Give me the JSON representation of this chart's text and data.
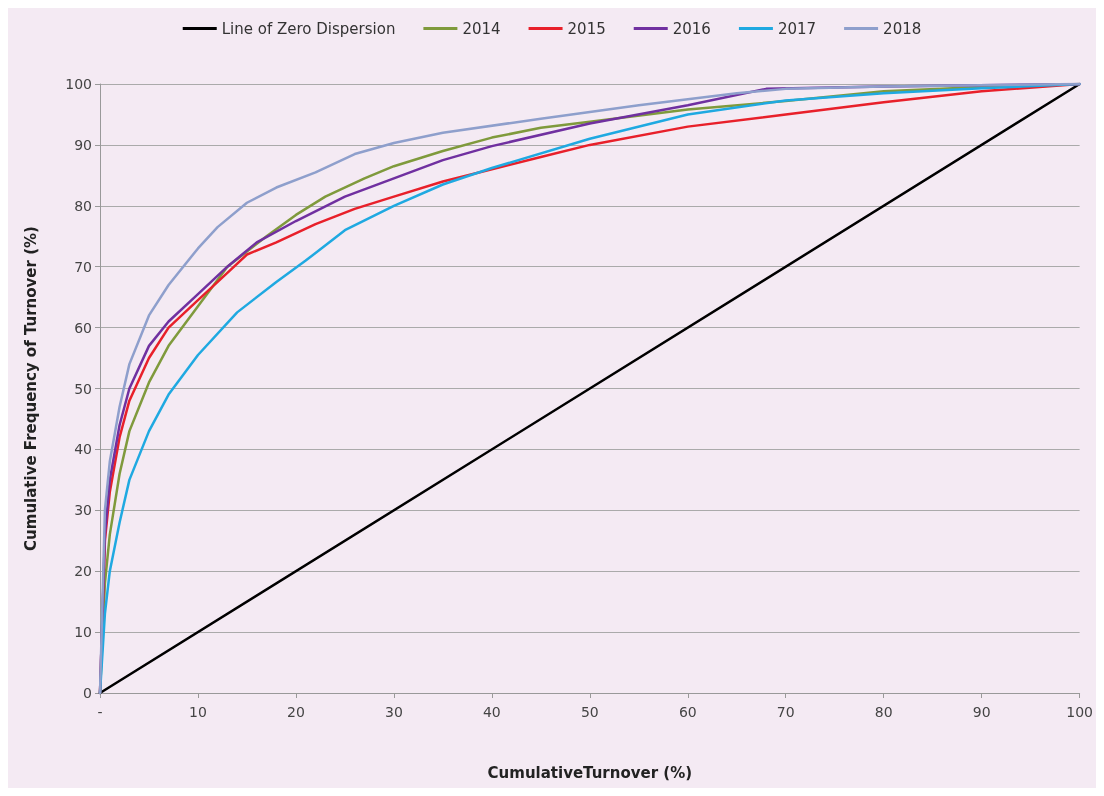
{
  "chart_data": {
    "type": "line",
    "xlabel": "CumulativeTurnover (%)",
    "ylabel": "Cumulative Frequency of Turnover (%)",
    "xlim": [
      0,
      100
    ],
    "xticks": [
      {
        "value": 0,
        "label": "-"
      },
      10,
      20,
      30,
      40,
      50,
      60,
      70,
      80,
      90,
      100
    ],
    "ylim": [
      0,
      100
    ],
    "yticks": [
      0,
      10,
      20,
      30,
      40,
      50,
      60,
      70,
      80,
      90,
      100
    ],
    "grid": "y",
    "legend": "top",
    "marker": "none",
    "line_style": "solid",
    "series": [
      {
        "name": "Line of Zero Dispersion",
        "color": "#000000",
        "x": [
          0,
          100
        ],
        "values": [
          0,
          100
        ]
      },
      {
        "name": "2014",
        "color": "#7f9a3c",
        "x": [
          0,
          0.5,
          1,
          2,
          3,
          5,
          7,
          10,
          13,
          17,
          20,
          23,
          27,
          30,
          35,
          40,
          45,
          50,
          60,
          70,
          80,
          90,
          100
        ],
        "values": [
          0,
          18,
          26,
          36,
          43,
          51,
          57,
          63.5,
          70,
          75,
          78.5,
          81.5,
          84.5,
          86.5,
          89,
          91.2,
          92.8,
          93.8,
          95.8,
          97.2,
          98.8,
          99.5,
          100
        ]
      },
      {
        "name": "2015",
        "color": "#e8202a",
        "x": [
          0,
          0.5,
          1,
          2,
          3,
          5,
          7,
          10,
          13,
          15,
          18,
          22,
          26,
          30,
          35,
          40,
          45,
          50,
          60,
          70,
          80,
          90,
          100
        ],
        "values": [
          0,
          25,
          33,
          42,
          48,
          55,
          60,
          64.5,
          69,
          72,
          74,
          77,
          79.5,
          81.5,
          84,
          86,
          88,
          90,
          93,
          95,
          97,
          98.8,
          100
        ]
      },
      {
        "name": "2016",
        "color": "#7030a0",
        "x": [
          0,
          0.5,
          1,
          2,
          3,
          5,
          7,
          10,
          13,
          16,
          20,
          25,
          30,
          35,
          40,
          50,
          60,
          68,
          80,
          100
        ],
        "values": [
          0,
          26,
          35,
          44,
          50,
          57,
          61,
          65.5,
          70,
          74,
          77.5,
          81.5,
          84.5,
          87.5,
          89.8,
          93.5,
          96.5,
          99.2,
          99.6,
          100
        ]
      },
      {
        "name": "2017",
        "color": "#1fa9e1",
        "x": [
          0,
          0.5,
          1,
          2,
          3,
          5,
          7,
          10,
          14,
          18,
          21,
          25,
          30,
          35,
          40,
          50,
          60,
          70,
          80,
          90,
          100
        ],
        "values": [
          0,
          13,
          20,
          28,
          35,
          43,
          49,
          55.5,
          62.5,
          67.5,
          71,
          76,
          80,
          83.5,
          86.2,
          91,
          95,
          97.3,
          98.5,
          99.3,
          100
        ]
      },
      {
        "name": "2018",
        "color": "#8e9fcc",
        "x": [
          0,
          0.5,
          1,
          2,
          3,
          5,
          7,
          10,
          12,
          15,
          18,
          22,
          26,
          30,
          35,
          45,
          55,
          65,
          70,
          80,
          100
        ],
        "values": [
          0,
          30,
          38,
          47,
          54,
          62,
          67,
          73,
          76.5,
          80.5,
          83,
          85.5,
          88.5,
          90.3,
          92,
          94.3,
          96.5,
          98.5,
          99.2,
          99.6,
          100
        ]
      }
    ]
  }
}
